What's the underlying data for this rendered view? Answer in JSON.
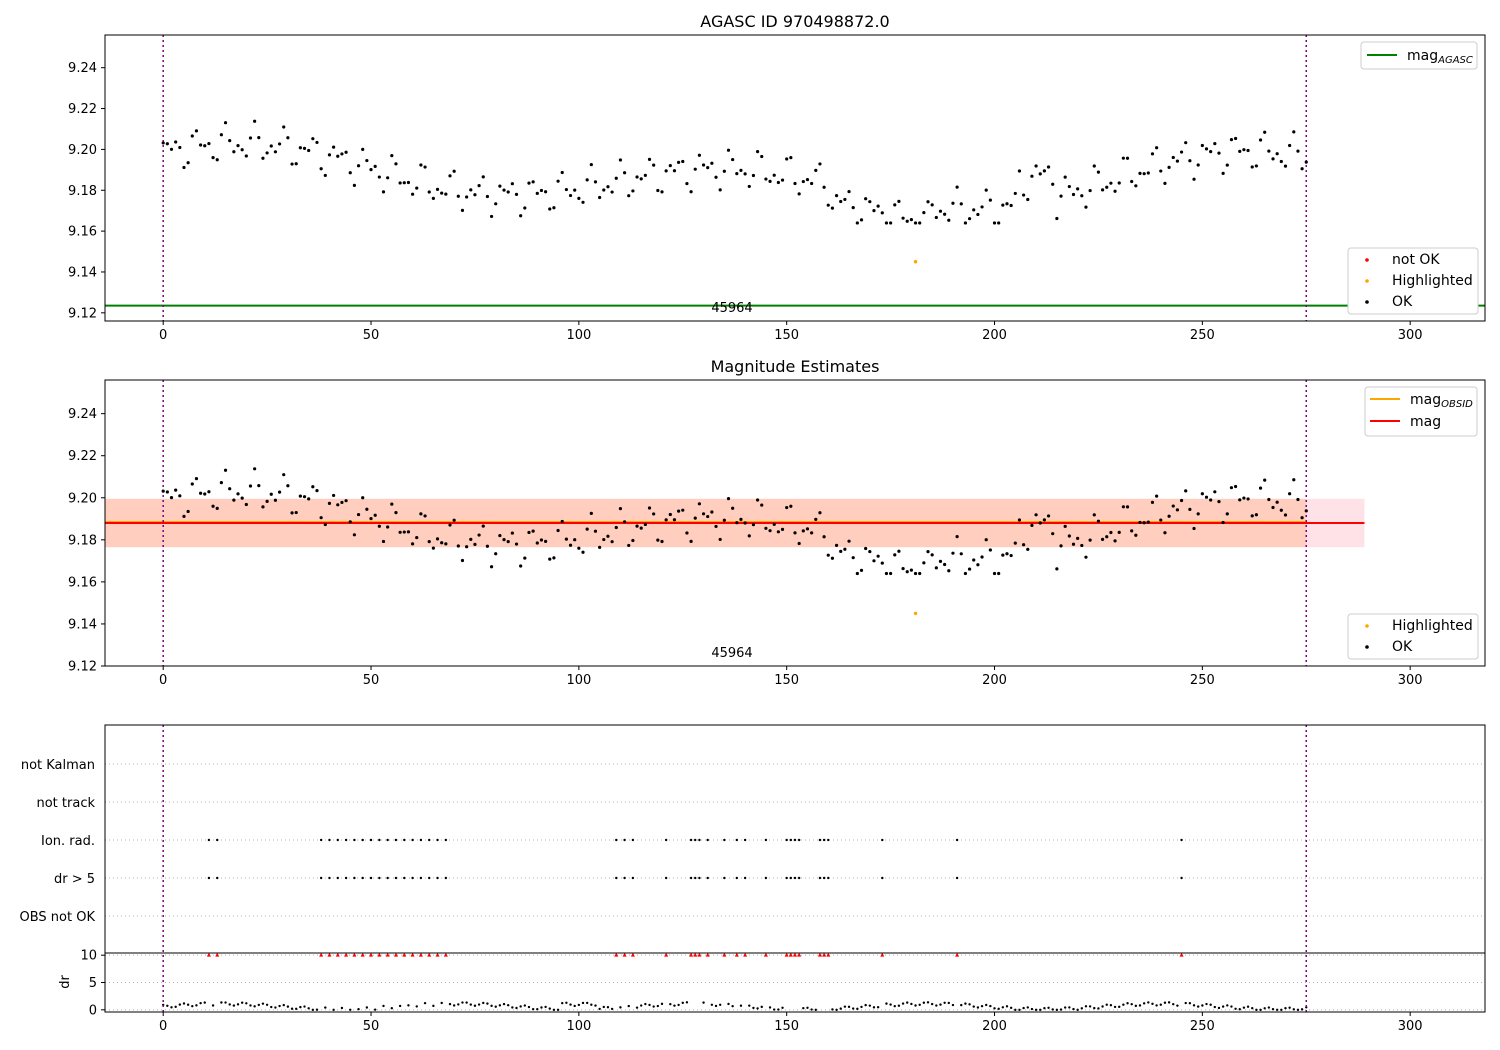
{
  "chart_data": [
    {
      "type": "scatter",
      "title": "AGASC ID 970498872.0",
      "xlim": [
        -14,
        318
      ],
      "ylim": [
        9.116,
        9.256
      ],
      "xticks": [
        0,
        50,
        100,
        150,
        200,
        250,
        300
      ],
      "xtick_labels": [
        "0",
        "50",
        "100",
        "150",
        "200",
        "250",
        "300"
      ],
      "yticks": [
        9.12,
        9.14,
        9.16,
        9.18,
        9.2,
        9.22,
        9.24
      ],
      "ytick_labels": [
        "9.12",
        "9.14",
        "9.16",
        "9.18",
        "9.20",
        "9.22",
        "9.24"
      ],
      "obsid_label": "45964",
      "obsid_label_x": 137,
      "vlines": [
        0,
        275
      ],
      "hline": {
        "name": "mag_AGASC",
        "y": 9.1235,
        "color": "#008000"
      },
      "line_legend": [
        {
          "label": "mag",
          "sub": "AGASC",
          "color": "#008000"
        }
      ],
      "point_legend": [
        {
          "label": "not OK",
          "color": "#ff0000"
        },
        {
          "label": "Highlighted",
          "color": "#ffa500"
        },
        {
          "label": "OK",
          "color": "#000000"
        }
      ],
      "highlighted": [
        {
          "x": 181,
          "y": 9.145
        }
      ]
    },
    {
      "type": "scatter",
      "title": "Magnitude Estimates",
      "xlim": [
        -14,
        318
      ],
      "ylim": [
        9.12,
        9.256
      ],
      "xticks": [
        0,
        50,
        100,
        150,
        200,
        250,
        300
      ],
      "xtick_labels": [
        "0",
        "50",
        "100",
        "150",
        "200",
        "250",
        "300"
      ],
      "yticks": [
        9.12,
        9.14,
        9.16,
        9.18,
        9.2,
        9.22,
        9.24
      ],
      "ytick_labels": [
        "9.12",
        "9.14",
        "9.16",
        "9.18",
        "9.20",
        "9.22",
        "9.24"
      ],
      "obsid_label": "45964",
      "obsid_label_x": 137,
      "vlines": [
        0,
        275
      ],
      "mag_line": {
        "y": 9.188,
        "x_end": 289,
        "color": "#ff0000",
        "band": [
          9.1765,
          9.1995
        ]
      },
      "obsid_line": {
        "y": 9.1885,
        "x_end": 275,
        "color": "#ffa500",
        "band": [
          9.1765,
          9.1995
        ]
      },
      "line_legend": [
        {
          "label": "mag",
          "sub": "OBSID",
          "color": "#ffa500"
        },
        {
          "label": "mag",
          "sub": "",
          "color": "#ff0000"
        }
      ],
      "point_legend": [
        {
          "label": "Highlighted",
          "color": "#ffa500"
        },
        {
          "label": "OK",
          "color": "#000000"
        }
      ],
      "highlighted": [
        {
          "x": 181,
          "y": 9.145
        }
      ]
    },
    {
      "type": "scatter",
      "title": "",
      "flag_categories": [
        "not Kalman",
        "not track",
        "Ion. rad.",
        "dr > 5",
        "OBS not OK"
      ],
      "flag_x": {
        "Ion. rad.": [
          11,
          13,
          38,
          40,
          42,
          44,
          46,
          48,
          50,
          52,
          54,
          56,
          58,
          60,
          62,
          64,
          66,
          68,
          109,
          111,
          113,
          121,
          127,
          128,
          129,
          131,
          135,
          138,
          140,
          145,
          150,
          151,
          152,
          153,
          158,
          159,
          160,
          173,
          191,
          245
        ],
        "dr > 5": [
          11,
          13,
          38,
          40,
          42,
          44,
          46,
          48,
          50,
          52,
          54,
          56,
          58,
          60,
          62,
          64,
          66,
          68,
          109,
          111,
          113,
          121,
          127,
          128,
          129,
          131,
          135,
          138,
          140,
          145,
          150,
          151,
          152,
          153,
          158,
          159,
          160,
          173,
          191,
          245
        ]
      },
      "dr_yticks": [
        0,
        5,
        10
      ],
      "dr_ytick_labels": [
        "0",
        "5",
        "10"
      ],
      "dr_ylabel": "dr",
      "dr_ylim": [
        -0.4,
        10.4
      ],
      "xticks": [
        0,
        50,
        100,
        150,
        200,
        250,
        300
      ],
      "xtick_labels": [
        "0",
        "50",
        "100",
        "150",
        "200",
        "250",
        "300"
      ],
      "xlim": [
        -14,
        318
      ],
      "vlines": [
        0,
        275
      ]
    }
  ]
}
